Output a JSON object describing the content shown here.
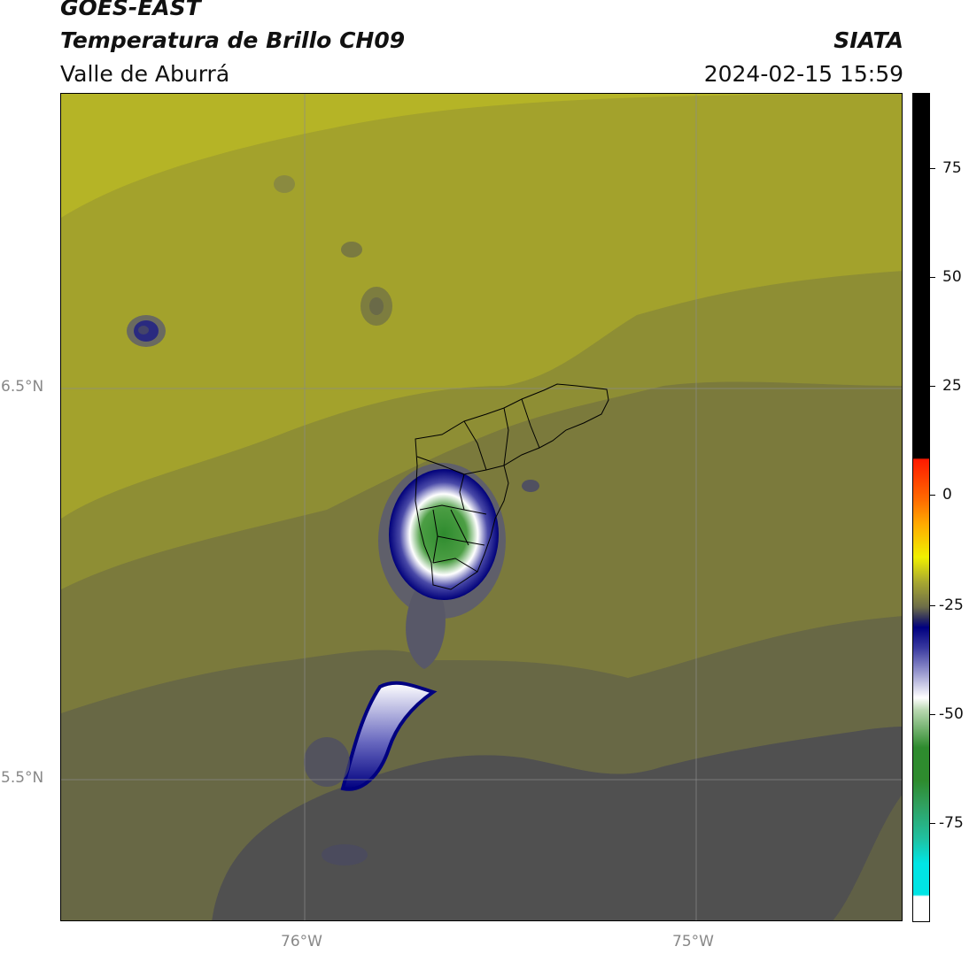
{
  "header": {
    "satellite": "GOES-EAST",
    "product": "Temperatura de Brillo CH09",
    "region": "Valle de Aburrá",
    "agency": "SIATA",
    "datetime": "2024-02-15 15:59"
  },
  "map": {
    "lat_labels": [
      "6.5°N",
      "5.5°N"
    ],
    "lon_labels": [
      "76°W",
      "75°W"
    ]
  },
  "colorbar": {
    "tick_labels": [
      "75",
      "50",
      "25",
      "0",
      "-25",
      "-50",
      "-75"
    ],
    "colors": {
      "black": "#000000",
      "red": "#ff2a00",
      "orange": "#ff8800",
      "yellow": "#f0f000",
      "olive": "#9a9a2a",
      "navy": "#000080",
      "white": "#ffffff",
      "green": "#2e8b2e",
      "cyan": "#00e5e5"
    }
  },
  "legend_colors": {
    "olive_light": "#b8b622",
    "olive_mid": "#a0a02a",
    "olive_dark": "#7a7a3a",
    "olive_darker": "#676745",
    "gray": "#4f4f4f"
  }
}
